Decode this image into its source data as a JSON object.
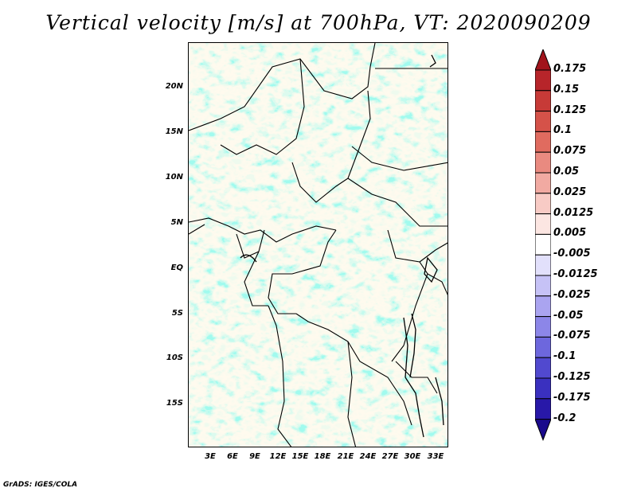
{
  "title": "Vertical velocity [m/s] at 700hPa, VT: 2020090209",
  "footer": "GrADS: IGES/COLA",
  "map": {
    "type": "map",
    "variable": "Vertical velocity",
    "units": "m/s",
    "level": "700hPa",
    "valid_time": "2020090209",
    "lat_labels": [
      "20N",
      "15N",
      "10N",
      "5N",
      "EQ",
      "5S",
      "10S",
      "15S"
    ],
    "lon_labels": [
      "3E",
      "6E",
      "9E",
      "12E",
      "15E",
      "18E",
      "21E",
      "24E",
      "27E",
      "30E",
      "33E"
    ]
  },
  "colorbar": {
    "labels": [
      "0.175",
      "0.15",
      "0.125",
      "0.1",
      "0.075",
      "0.05",
      "0.025",
      "0.0125",
      "0.005",
      "-0.005",
      "-0.0125",
      "-0.025",
      "-0.05",
      "-0.075",
      "-0.1",
      "-0.125",
      "-0.175",
      "-0.2"
    ],
    "colors": [
      "#a1141c",
      "#b7252a",
      "#c73a37",
      "#d55249",
      "#e06b5f",
      "#e98a80",
      "#f1aaa2",
      "#f8cbc5",
      "#fce6e2",
      "#ffffff",
      "#e2e0fb",
      "#c6c2f6",
      "#aaa4f0",
      "#8c86e8",
      "#6d67dd",
      "#5149cf",
      "#3a30bf",
      "#2818a8",
      "#1a0a8c"
    ]
  }
}
